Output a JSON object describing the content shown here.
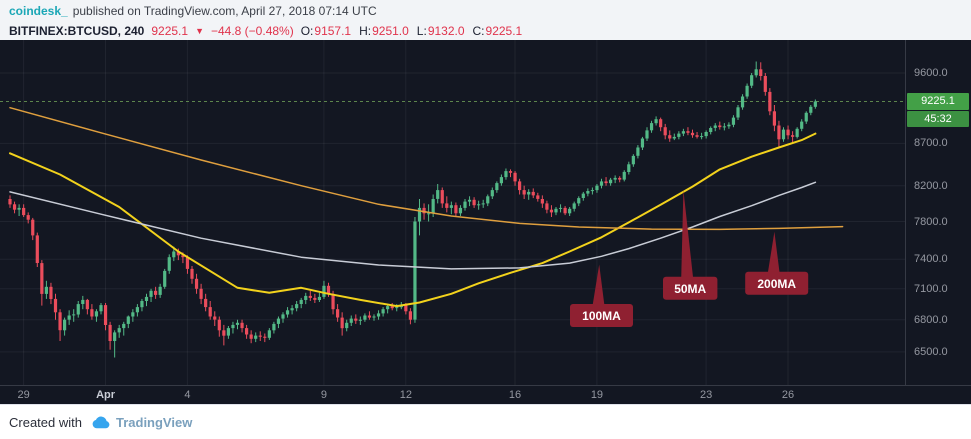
{
  "header": {
    "author": "coindesk_",
    "publish_info": "published on TradingView.com, April 27, 2018 07:14 UTC",
    "symbol": "BITFINEX:BTCUSD, 240",
    "last_price": "9225.1",
    "direction": "▼",
    "change": "−44.8 (−0.48%)",
    "ohlc": [
      {
        "label": "O:",
        "value": "9157.1"
      },
      {
        "label": "H:",
        "value": "9251.0"
      },
      {
        "label": "L:",
        "value": "9132.0"
      },
      {
        "label": "C:",
        "value": "9225.1"
      }
    ]
  },
  "footer": {
    "created_with": "Created with",
    "brand": "TradingView"
  },
  "colors": {
    "header_bg": "#f2f4f7",
    "teal": "#1ba7b6",
    "red": "#e0334c",
    "chart_bg": "#131722",
    "grid": "rgba(255,255,255,0.06)",
    "axis_line": "#363a45",
    "axis_text": "#9598a1",
    "up": "#53b987",
    "down": "#eb4d5c",
    "ma50": "#f2d21c",
    "ma100": "#c8ccd6",
    "ma200": "#df9f3e",
    "price_line": "#6a9955",
    "badge_price": "#43a047",
    "badge_countdown": "#3c9142",
    "callout": "#8f2031",
    "brand_blue": "#36a5ee"
  },
  "chart_data": {
    "type": "candlestick",
    "symbol": "BITFINEX:BTCUSD",
    "interval": "240",
    "scale": "log",
    "last_price": 9225.1,
    "last_price_label": "9225.1",
    "countdown": "45:32",
    "price_ticks": [
      9600.0,
      8700.0,
      8200.0,
      7800.0,
      7400.0,
      7100.0,
      6800.0,
      6500.0
    ],
    "time_ticks": [
      {
        "label": "29",
        "idx": 3
      },
      {
        "label": "Apr",
        "idx": 21,
        "bold": true
      },
      {
        "label": "4",
        "idx": 39
      },
      {
        "label": "9",
        "idx": 69
      },
      {
        "label": "12",
        "idx": 87
      },
      {
        "label": "16",
        "idx": 111
      },
      {
        "label": "19",
        "idx": 129
      },
      {
        "label": "23",
        "idx": 153
      },
      {
        "label": "26",
        "idx": 171
      }
    ],
    "candles": [
      [
        8050,
        8090,
        7950,
        7990
      ],
      [
        7990,
        8020,
        7890,
        7930
      ],
      [
        7930,
        7990,
        7860,
        7950
      ],
      [
        7950,
        7990,
        7850,
        7870
      ],
      [
        7870,
        7900,
        7780,
        7820
      ],
      [
        7820,
        7840,
        7600,
        7650
      ],
      [
        7650,
        7680,
        7320,
        7360
      ],
      [
        7360,
        7390,
        6935,
        7050
      ],
      [
        7050,
        7180,
        7000,
        7120
      ],
      [
        7120,
        7160,
        6950,
        7000
      ],
      [
        7000,
        7050,
        6800,
        6870
      ],
      [
        6870,
        6900,
        6600,
        6700
      ],
      [
        6700,
        6820,
        6650,
        6800
      ],
      [
        6800,
        6890,
        6750,
        6840
      ],
      [
        6840,
        6900,
        6780,
        6850
      ],
      [
        6850,
        6980,
        6820,
        6950
      ],
      [
        6950,
        7030,
        6900,
        6990
      ],
      [
        6990,
        7000,
        6850,
        6900
      ],
      [
        6900,
        6950,
        6800,
        6830
      ],
      [
        6830,
        6900,
        6780,
        6880
      ],
      [
        6880,
        6960,
        6850,
        6940
      ],
      [
        6940,
        6960,
        6700,
        6750
      ],
      [
        6750,
        6780,
        6520,
        6600
      ],
      [
        6600,
        6700,
        6450,
        6680
      ],
      [
        6680,
        6750,
        6630,
        6720
      ],
      [
        6720,
        6780,
        6650,
        6760
      ],
      [
        6760,
        6840,
        6720,
        6830
      ],
      [
        6830,
        6900,
        6780,
        6870
      ],
      [
        6870,
        6950,
        6830,
        6920
      ],
      [
        6920,
        7000,
        6880,
        6980
      ],
      [
        6980,
        7050,
        6930,
        7020
      ],
      [
        7020,
        7100,
        6970,
        7080
      ],
      [
        7080,
        7120,
        7000,
        7040
      ],
      [
        7040,
        7150,
        7010,
        7120
      ],
      [
        7120,
        7300,
        7100,
        7280
      ],
      [
        7280,
        7450,
        7250,
        7420
      ],
      [
        7420,
        7530,
        7380,
        7480
      ],
      [
        7480,
        7510,
        7390,
        7440
      ],
      [
        7440,
        7470,
        7360,
        7420
      ],
      [
        7420,
        7440,
        7250,
        7300
      ],
      [
        7300,
        7330,
        7150,
        7200
      ],
      [
        7200,
        7250,
        7050,
        7100
      ],
      [
        7100,
        7150,
        6950,
        7000
      ],
      [
        7000,
        7050,
        6880,
        6920
      ],
      [
        6920,
        6980,
        6800,
        6830
      ],
      [
        6830,
        6880,
        6740,
        6800
      ],
      [
        6800,
        6830,
        6640,
        6700
      ],
      [
        6700,
        6750,
        6560,
        6650
      ],
      [
        6650,
        6740,
        6620,
        6720
      ],
      [
        6720,
        6780,
        6670,
        6750
      ],
      [
        6750,
        6800,
        6710,
        6770
      ],
      [
        6770,
        6800,
        6680,
        6720
      ],
      [
        6720,
        6750,
        6620,
        6660
      ],
      [
        6660,
        6700,
        6580,
        6620
      ],
      [
        6620,
        6680,
        6590,
        6650
      ],
      [
        6650,
        6690,
        6600,
        6640
      ],
      [
        6640,
        6670,
        6590,
        6630
      ],
      [
        6630,
        6720,
        6610,
        6700
      ],
      [
        6700,
        6780,
        6670,
        6760
      ],
      [
        6760,
        6830,
        6720,
        6810
      ],
      [
        6810,
        6870,
        6770,
        6850
      ],
      [
        6850,
        6920,
        6820,
        6890
      ],
      [
        6890,
        6940,
        6850,
        6910
      ],
      [
        6910,
        6980,
        6880,
        6950
      ],
      [
        6950,
        7010,
        6910,
        6990
      ],
      [
        6990,
        7060,
        6950,
        7030
      ],
      [
        7030,
        7080,
        6980,
        7010
      ],
      [
        7010,
        7050,
        6960,
        6990
      ],
      [
        6990,
        7060,
        6970,
        7020
      ],
      [
        7020,
        7180,
        7000,
        7130
      ],
      [
        7130,
        7160,
        7020,
        7050
      ],
      [
        7050,
        7080,
        6850,
        6900
      ],
      [
        6900,
        6950,
        6780,
        6820
      ],
      [
        6820,
        6870,
        6650,
        6720
      ],
      [
        6720,
        6800,
        6690,
        6770
      ],
      [
        6770,
        6840,
        6740,
        6810
      ],
      [
        6810,
        6850,
        6760,
        6790
      ],
      [
        6790,
        6830,
        6750,
        6800
      ],
      [
        6800,
        6860,
        6780,
        6840
      ],
      [
        6840,
        6880,
        6800,
        6820
      ],
      [
        6820,
        6850,
        6790,
        6830
      ],
      [
        6830,
        6890,
        6800,
        6860
      ],
      [
        6860,
        6920,
        6830,
        6900
      ],
      [
        6900,
        6950,
        6860,
        6930
      ],
      [
        6930,
        6960,
        6890,
        6910
      ],
      [
        6910,
        6950,
        6880,
        6920
      ],
      [
        6920,
        6970,
        6900,
        6940
      ],
      [
        6940,
        6960,
        6850,
        6880
      ],
      [
        6880,
        6910,
        6756,
        6800
      ],
      [
        6800,
        7850,
        6770,
        7800
      ],
      [
        7800,
        8050,
        7650,
        7950
      ],
      [
        7950,
        8000,
        7820,
        7890
      ],
      [
        7890,
        7990,
        7800,
        7890
      ],
      [
        7890,
        8100,
        7850,
        8050
      ],
      [
        8050,
        8220,
        8000,
        8150
      ],
      [
        8150,
        8180,
        7950,
        8000
      ],
      [
        8000,
        8080,
        7900,
        7950
      ],
      [
        7950,
        8020,
        7880,
        7980
      ],
      [
        7980,
        8010,
        7850,
        7890
      ],
      [
        7890,
        7980,
        7860,
        7950
      ],
      [
        7950,
        8050,
        7920,
        8020
      ],
      [
        8020,
        8080,
        7970,
        8040
      ],
      [
        8040,
        8070,
        7950,
        7980
      ],
      [
        7980,
        8030,
        7930,
        7990
      ],
      [
        7990,
        8040,
        7950,
        8000
      ],
      [
        8000,
        8100,
        7970,
        8080
      ],
      [
        8080,
        8180,
        8050,
        8150
      ],
      [
        8150,
        8250,
        8120,
        8230
      ],
      [
        8230,
        8330,
        8200,
        8300
      ],
      [
        8300,
        8400,
        8270,
        8370
      ],
      [
        8370,
        8390,
        8300,
        8350
      ],
      [
        8350,
        8370,
        8200,
        8250
      ],
      [
        8250,
        8280,
        8100,
        8150
      ],
      [
        8150,
        8200,
        8050,
        8100
      ],
      [
        8100,
        8160,
        8040,
        8130
      ],
      [
        8130,
        8170,
        8060,
        8090
      ],
      [
        8090,
        8120,
        8020,
        8050
      ],
      [
        8050,
        8090,
        7950,
        8000
      ],
      [
        8000,
        8030,
        7890,
        7930
      ],
      [
        7930,
        7980,
        7850,
        7900
      ],
      [
        7900,
        7960,
        7870,
        7940
      ],
      [
        7940,
        7990,
        7900,
        7950
      ],
      [
        7950,
        7970,
        7870,
        7890
      ],
      [
        7890,
        7960,
        7860,
        7940
      ],
      [
        7940,
        8020,
        7910,
        8000
      ],
      [
        8000,
        8080,
        7970,
        8060
      ],
      [
        8060,
        8130,
        8030,
        8110
      ],
      [
        8110,
        8170,
        8080,
        8140
      ],
      [
        8140,
        8180,
        8100,
        8150
      ],
      [
        8150,
        8220,
        8120,
        8200
      ],
      [
        8200,
        8280,
        8170,
        8250
      ],
      [
        8250,
        8300,
        8200,
        8230
      ],
      [
        8230,
        8290,
        8200,
        8270
      ],
      [
        8270,
        8320,
        8230,
        8290
      ],
      [
        8290,
        8310,
        8240,
        8270
      ],
      [
        8270,
        8380,
        8250,
        8360
      ],
      [
        8360,
        8480,
        8330,
        8450
      ],
      [
        8450,
        8570,
        8420,
        8550
      ],
      [
        8550,
        8680,
        8520,
        8650
      ],
      [
        8650,
        8780,
        8620,
        8760
      ],
      [
        8760,
        8900,
        8730,
        8860
      ],
      [
        8860,
        8980,
        8830,
        8950
      ],
      [
        8950,
        9035,
        8920,
        9000
      ],
      [
        9000,
        9020,
        8850,
        8900
      ],
      [
        8900,
        8940,
        8750,
        8800
      ],
      [
        8800,
        8860,
        8720,
        8760
      ],
      [
        8760,
        8820,
        8740,
        8780
      ],
      [
        8780,
        8850,
        8750,
        8820
      ],
      [
        8820,
        8880,
        8790,
        8850
      ],
      [
        8850,
        8900,
        8800,
        8830
      ],
      [
        8830,
        8870,
        8770,
        8800
      ],
      [
        8800,
        8840,
        8760,
        8780
      ],
      [
        8780,
        8830,
        8750,
        8790
      ],
      [
        8790,
        8860,
        8760,
        8840
      ],
      [
        8840,
        8910,
        8810,
        8890
      ],
      [
        8890,
        8950,
        8850,
        8920
      ],
      [
        8920,
        8970,
        8870,
        8900
      ],
      [
        8900,
        8950,
        8860,
        8910
      ],
      [
        8910,
        8960,
        8880,
        8930
      ],
      [
        8930,
        9050,
        8900,
        9020
      ],
      [
        9020,
        9180,
        8990,
        9150
      ],
      [
        9150,
        9320,
        9120,
        9290
      ],
      [
        9290,
        9460,
        9260,
        9430
      ],
      [
        9430,
        9600,
        9400,
        9570
      ],
      [
        9570,
        9755,
        9540,
        9650
      ],
      [
        9650,
        9745,
        9500,
        9560
      ],
      [
        9560,
        9600,
        9300,
        9350
      ],
      [
        9350,
        9400,
        9050,
        9100
      ],
      [
        9100,
        9180,
        8850,
        8920
      ],
      [
        8920,
        8980,
        8650,
        8750
      ],
      [
        8750,
        8900,
        8720,
        8870
      ],
      [
        8870,
        8920,
        8750,
        8800
      ],
      [
        8800,
        8850,
        8700,
        8780
      ],
      [
        8780,
        8900,
        8760,
        8880
      ],
      [
        8880,
        9000,
        8850,
        8970
      ],
      [
        8970,
        9100,
        8940,
        9080
      ],
      [
        9080,
        9180,
        9050,
        9157
      ],
      [
        9157.1,
        9251.0,
        9132.0,
        9225.1
      ]
    ],
    "ma_lines": [
      {
        "name": "50MA",
        "color": "#f2d21c",
        "width": 2,
        "points": [
          [
            0,
            8580
          ],
          [
            11,
            8330
          ],
          [
            24,
            7960
          ],
          [
            37,
            7480
          ],
          [
            50,
            7110
          ],
          [
            57,
            7060
          ],
          [
            64,
            7110
          ],
          [
            70,
            7050
          ],
          [
            77,
            6990
          ],
          [
            85,
            6930
          ],
          [
            90,
            6965
          ],
          [
            97,
            7050
          ],
          [
            103,
            7155
          ],
          [
            110,
            7260
          ],
          [
            117,
            7360
          ],
          [
            123,
            7480
          ],
          [
            130,
            7630
          ],
          [
            136,
            7790
          ],
          [
            143,
            7985
          ],
          [
            150,
            8190
          ],
          [
            156,
            8390
          ],
          [
            163,
            8540
          ],
          [
            169,
            8650
          ],
          [
            174,
            8740
          ],
          [
            177,
            8820
          ]
        ]
      },
      {
        "name": "100MA",
        "color": "#c8ccd6",
        "width": 1.5,
        "points": [
          [
            0,
            8130
          ],
          [
            20,
            7880
          ],
          [
            42,
            7620
          ],
          [
            64,
            7420
          ],
          [
            81,
            7340
          ],
          [
            97,
            7300
          ],
          [
            112,
            7310
          ],
          [
            123,
            7360
          ],
          [
            130,
            7430
          ],
          [
            136,
            7510
          ],
          [
            143,
            7620
          ],
          [
            150,
            7740
          ],
          [
            156,
            7855
          ],
          [
            163,
            7975
          ],
          [
            169,
            8090
          ],
          [
            174,
            8180
          ],
          [
            177,
            8240
          ]
        ]
      },
      {
        "name": "200MA",
        "color": "#df9f3e",
        "width": 1.5,
        "points": [
          [
            0,
            9145
          ],
          [
            20,
            8830
          ],
          [
            42,
            8500
          ],
          [
            64,
            8200
          ],
          [
            81,
            7990
          ],
          [
            97,
            7860
          ],
          [
            112,
            7780
          ],
          [
            125,
            7740
          ],
          [
            141,
            7718
          ],
          [
            156,
            7715
          ],
          [
            169,
            7725
          ],
          [
            183,
            7745
          ]
        ]
      }
    ],
    "callouts": [
      {
        "label": "100MA",
        "tip_idx": 129.5,
        "tip_price": 7345,
        "box_idx": 130,
        "box_price": 6840
      },
      {
        "label": "50MA",
        "tip_idx": 148,
        "tip_price": 8150,
        "box_idx": 149.5,
        "box_price": 7105
      },
      {
        "label": "200MA",
        "tip_idx": 168,
        "tip_price": 7690,
        "box_idx": 168.5,
        "box_price": 7155
      }
    ]
  }
}
